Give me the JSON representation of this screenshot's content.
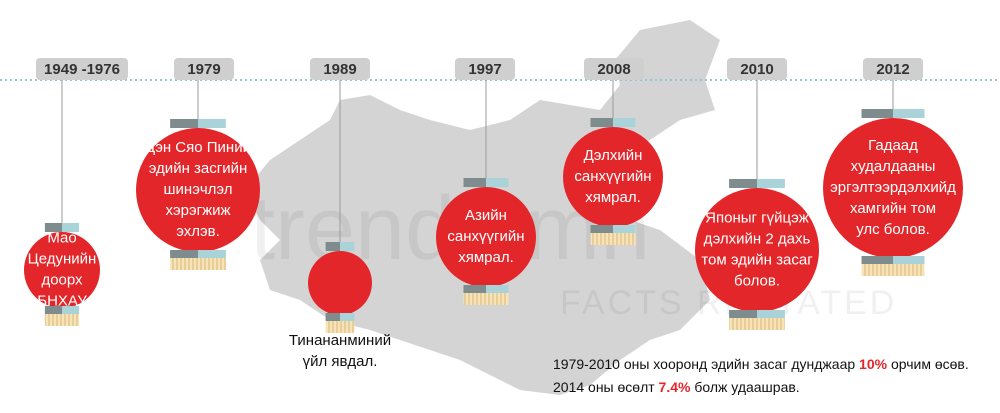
{
  "watermark": {
    "name": "trends.mn",
    "tagline": "FACTS RESTATED"
  },
  "events": [
    {
      "year": "1949 -1976",
      "lines": [
        "Мао",
        "Цедунийн",
        "доорх",
        "БНХАУ"
      ]
    },
    {
      "year": "1979",
      "lines": [
        "Дэн Сяо Пиний",
        "эдийн засгийн",
        "шинэчлэл",
        "хэрэгжиж",
        "эхлэв."
      ]
    },
    {
      "year": "1989",
      "lines": [
        "Тинананминий",
        "үйл явдал."
      ]
    },
    {
      "year": "1997",
      "lines": [
        "Азийн",
        "санхүүгийн",
        "хямрал."
      ]
    },
    {
      "year": "2008",
      "lines": [
        "Дэлхийн",
        "санхүүгийн",
        "хямрал."
      ]
    },
    {
      "year": "2010",
      "lines": [
        "Японыг гүйцэж",
        "дэлхийн 2 дахь",
        "том эдийн засаг",
        "болов."
      ]
    },
    {
      "year": "2012",
      "lines": [
        "Гадаад",
        "худалдааны",
        "эргэлтээрдэлхийд",
        "хамгийн том",
        "улс болов."
      ]
    }
  ],
  "footnote": [
    {
      "before": "1979-2010 оны хооронд эдийн засаг дунджаар ",
      "highlight": "10%",
      "after": " орчим өсөв."
    },
    {
      "before": "2014 оны өсөлт ",
      "highlight": "7.4%",
      "after": " болж удаашрав."
    }
  ]
}
